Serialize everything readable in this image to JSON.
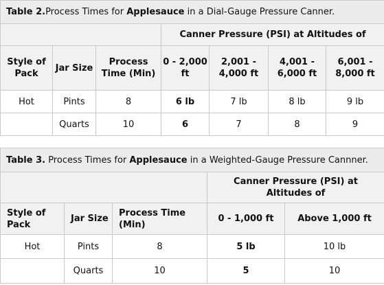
{
  "table2": {
    "caption_prefix": "Table 2.",
    "caption_mid": "Process Times for ",
    "caption_bold": "Applesauce",
    "caption_suffix": " in a Dial-Gauge Pressure Canner.",
    "group_header": "Canner Pressure (PSI) at Altitudes of",
    "columns": [
      "Style of Pack",
      "Jar Size",
      "Process Time (Min)",
      "0 - 2,000 ft",
      "2,001 - 4,000 ft",
      "4,001 - 6,000 ft",
      "6,001 - 8,000 ft"
    ],
    "rows": [
      [
        "Hot",
        "Pints",
        "8",
        "6 lb",
        "7 lb",
        "8 lb",
        "9 lb"
      ],
      [
        "",
        "Quarts",
        "10",
        "6",
        "7",
        "8",
        "9"
      ]
    ]
  },
  "table3": {
    "caption_prefix": "Table 3.",
    "caption_mid": " Process Times for ",
    "caption_bold": "Applesauce",
    "caption_suffix": " in a Weighted-Gauge Pressure Cannner.",
    "group_header": "Canner Pressure (PSI) at Altitudes of",
    "columns": [
      "Style of Pack",
      "Jar Size",
      "Process Time (Min)",
      "0 - 1,000 ft",
      "Above 1,000 ft"
    ],
    "rows": [
      [
        "Hot",
        "Pints",
        "8",
        "5 lb",
        "10 lb"
      ],
      [
        "",
        "Quarts",
        "10",
        "5",
        "10"
      ]
    ]
  }
}
